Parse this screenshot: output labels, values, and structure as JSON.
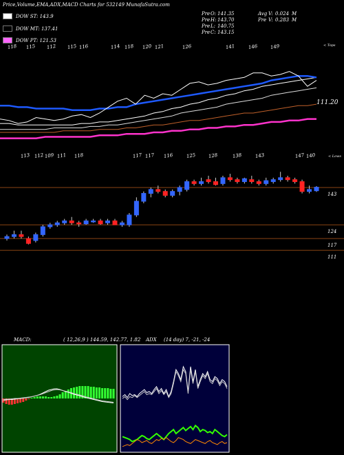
{
  "header": {
    "title": "Price,Volume,EMA,ADX,MACD Charts for 532149 MunafaSutra.com",
    "price_stats": [
      {
        "label": "Pre",
        "key": "O:",
        "value": "141.35"
      },
      {
        "label": "Pre",
        "key": "H:",
        "value": "143.70"
      },
      {
        "label": "Pre",
        "key": "L:",
        "value": "140.75"
      },
      {
        "label": "Pre",
        "key": "C:",
        "value": "143.15"
      }
    ],
    "vol_stats": [
      {
        "label": "Avg",
        "key": "V:",
        "value": "0.024",
        "unit": "M"
      },
      {
        "label": "Pre",
        "key": "V:",
        "value": "0.283",
        "unit": "M"
      }
    ]
  },
  "legend": [
    {
      "label": "DOW ST:",
      "value": "143.9",
      "color": "#ffffff"
    },
    {
      "label": "DOW MT:",
      "value": "137.41",
      "color": "#000000"
    },
    {
      "label": "DOW PT:",
      "value": "121.53",
      "color": "#ff66ff"
    }
  ],
  "colors": {
    "up": "#3366ff",
    "down": "#ff2222",
    "ema_blue": "#1e5aff",
    "ema_magenta": "#ff33cc",
    "grid": "#8b4513",
    "macd_green": "#33ff33",
    "macd_red": "#ff3333",
    "adx_green": "#33ff00",
    "adx_orange": "#ff8800"
  },
  "top_panel": {
    "tops_label": "< Tops",
    "top_labels": [
      "118",
      "115",
      "112",
      "115",
      "116",
      "114",
      "118",
      "120",
      "121",
      "126",
      "141",
      "146",
      "149"
    ],
    "price_label": "111.20",
    "ema_blue": [
      126,
      126,
      125,
      125,
      124,
      124,
      124,
      124,
      123,
      123,
      123,
      124,
      124,
      125,
      125,
      127,
      128,
      129,
      130,
      131,
      132,
      133,
      134,
      135,
      136,
      137,
      138,
      139,
      140,
      141,
      143,
      144,
      145,
      146,
      146,
      145
    ],
    "ema_white1": [
      114,
      114,
      113,
      113,
      113,
      113,
      113,
      113,
      113,
      114,
      114,
      115,
      115,
      116,
      117,
      118,
      119,
      121,
      122,
      124,
      125,
      127,
      128,
      130,
      131,
      133,
      134,
      136,
      137,
      139,
      140,
      141,
      142,
      143,
      144,
      145
    ],
    "ema_white2": [
      110,
      110,
      110,
      110,
      110,
      110,
      111,
      111,
      111,
      111,
      112,
      112,
      113,
      113,
      114,
      115,
      116,
      117,
      118,
      119,
      121,
      122,
      123,
      124,
      125,
      127,
      128,
      129,
      130,
      131,
      133,
      134,
      135,
      136,
      137,
      138
    ],
    "ema_orange": [
      108,
      108,
      108,
      108,
      108,
      108,
      108,
      109,
      109,
      109,
      109,
      110,
      110,
      110,
      111,
      111,
      112,
      113,
      113,
      114,
      115,
      116,
      116,
      117,
      118,
      119,
      120,
      121,
      121,
      122,
      123,
      124,
      125,
      126,
      126,
      127
    ],
    "ema_magenta": [
      104,
      104,
      104,
      104,
      104,
      105,
      105,
      105,
      105,
      105,
      105,
      106,
      106,
      106,
      107,
      107,
      107,
      108,
      108,
      109,
      109,
      110,
      110,
      111,
      111,
      112,
      112,
      113,
      113,
      114,
      115,
      115,
      116,
      116,
      117,
      117
    ],
    "price_line": [
      117,
      116,
      114,
      115,
      118,
      117,
      116,
      117,
      119,
      120,
      118,
      121,
      125,
      129,
      131,
      127,
      133,
      131,
      134,
      133,
      137,
      141,
      142,
      140,
      141,
      143,
      144,
      145,
      148,
      148,
      146,
      147,
      149,
      146,
      139,
      143
    ]
  },
  "main_panel": {
    "lows_label": "< Lows",
    "low_labels": [
      "113",
      "112",
      "109",
      "111",
      "118",
      "117",
      "117",
      "116",
      "125",
      "128",
      "138",
      "143",
      "147",
      "140"
    ],
    "level_lines": [
      {
        "value": 143,
        "label": "143"
      },
      {
        "value": 124,
        "label": "124"
      },
      {
        "value": 117,
        "label": "117"
      },
      {
        "value": 111,
        "label": "111"
      }
    ],
    "ylim": [
      105,
      160
    ],
    "candles": [
      {
        "o": 117,
        "h": 119,
        "l": 116,
        "c": 118
      },
      {
        "o": 118,
        "h": 121,
        "l": 117,
        "c": 119
      },
      {
        "o": 119,
        "h": 121,
        "l": 117,
        "c": 118
      },
      {
        "o": 117,
        "h": 118,
        "l": 114,
        "c": 114.5
      },
      {
        "o": 116,
        "h": 120,
        "l": 115,
        "c": 119
      },
      {
        "o": 119,
        "h": 124,
        "l": 118,
        "c": 123
      },
      {
        "o": 123,
        "h": 125,
        "l": 122,
        "c": 124
      },
      {
        "o": 124,
        "h": 126,
        "l": 123,
        "c": 125
      },
      {
        "o": 125,
        "h": 127,
        "l": 124,
        "c": 126
      },
      {
        "o": 126,
        "h": 128,
        "l": 124,
        "c": 125
      },
      {
        "o": 125,
        "h": 126,
        "l": 123,
        "c": 124.5
      },
      {
        "o": 124.5,
        "h": 127,
        "l": 124,
        "c": 126
      },
      {
        "o": 126,
        "h": 127,
        "l": 125,
        "c": 126
      },
      {
        "o": 126,
        "h": 127,
        "l": 124,
        "c": 124.5
      },
      {
        "o": 125,
        "h": 127,
        "l": 124,
        "c": 126
      },
      {
        "o": 126,
        "h": 127,
        "l": 124,
        "c": 124
      },
      {
        "o": 124,
        "h": 126,
        "l": 123,
        "c": 125
      },
      {
        "o": 124,
        "h": 130,
        "l": 123,
        "c": 129
      },
      {
        "o": 129,
        "h": 138,
        "l": 128,
        "c": 136
      },
      {
        "o": 136,
        "h": 141,
        "l": 135,
        "c": 140
      },
      {
        "o": 140,
        "h": 143,
        "l": 138,
        "c": 142
      },
      {
        "o": 142,
        "h": 144,
        "l": 140,
        "c": 141
      },
      {
        "o": 141,
        "h": 142,
        "l": 138,
        "c": 139
      },
      {
        "o": 139,
        "h": 142,
        "l": 138,
        "c": 141
      },
      {
        "o": 141,
        "h": 144,
        "l": 139,
        "c": 143
      },
      {
        "o": 142,
        "h": 147,
        "l": 141,
        "c": 146
      },
      {
        "o": 146,
        "h": 147,
        "l": 144,
        "c": 145
      },
      {
        "o": 145,
        "h": 148,
        "l": 144,
        "c": 146
      },
      {
        "o": 147,
        "h": 149,
        "l": 145,
        "c": 146
      },
      {
        "o": 146,
        "h": 148,
        "l": 144,
        "c": 144.5
      },
      {
        "o": 145,
        "h": 149,
        "l": 144,
        "c": 148
      },
      {
        "o": 148,
        "h": 150,
        "l": 146,
        "c": 147
      },
      {
        "o": 147,
        "h": 148,
        "l": 145,
        "c": 146
      },
      {
        "o": 146,
        "h": 148,
        "l": 145,
        "c": 147.5
      },
      {
        "o": 147,
        "h": 149,
        "l": 145,
        "c": 146
      },
      {
        "o": 146,
        "h": 147,
        "l": 144,
        "c": 145
      },
      {
        "o": 145,
        "h": 148,
        "l": 144,
        "c": 146.5
      },
      {
        "o": 146,
        "h": 148,
        "l": 145,
        "c": 147
      },
      {
        "o": 147,
        "h": 151,
        "l": 146,
        "c": 148
      },
      {
        "o": 148,
        "h": 149,
        "l": 146,
        "c": 147
      },
      {
        "o": 147,
        "h": 148,
        "l": 145,
        "c": 146
      },
      {
        "o": 146,
        "h": 147,
        "l": 140,
        "c": 141
      },
      {
        "o": 141,
        "h": 144,
        "l": 140,
        "c": 142
      },
      {
        "o": 141.35,
        "h": 143.7,
        "l": 140.75,
        "c": 143.15
      }
    ]
  },
  "macd": {
    "title": "MACD:",
    "values": "( 12,26,9 ) 144.59, 142.77, 1.82",
    "histogram": [
      -0.6,
      -0.8,
      -0.9,
      -0.9,
      -0.8,
      -0.7,
      -0.6,
      -0.5,
      -0.3,
      -0.1,
      0.1,
      0.2,
      0.3,
      0.3,
      0.3,
      0.3,
      0.2,
      0.2,
      0.3,
      0.4,
      0.6,
      0.9,
      1.1,
      1.3,
      1.5,
      1.6,
      1.7,
      1.8,
      1.8,
      1.8,
      1.8,
      1.7,
      1.7,
      1.6,
      1.6,
      1.5,
      1.5,
      1.5,
      1.4,
      1.4
    ],
    "line1": [
      -0.5,
      -0.4,
      -0.3,
      -0.3,
      -0.2,
      -0.1,
      0,
      0.1,
      0.2,
      0.3,
      0.5,
      0.7,
      0.9,
      1.2,
      1.6,
      2.0,
      2.4,
      2.6,
      2.8,
      2.8,
      2.6,
      2.3,
      2.0,
      1.8,
      1.5,
      1.2,
      1.0,
      0.8,
      0.5,
      0.3,
      0.1,
      -0.1,
      -0.3,
      -0.5,
      -0.7,
      -0.9,
      -1.0,
      -1.1,
      -1.2,
      -1.3
    ],
    "line2": [
      -0.3,
      -0.2,
      -0.2,
      -0.1,
      0,
      0,
      0.1,
      0.2,
      0.3,
      0.4,
      0.5,
      0.7,
      0.9,
      1.1,
      1.4,
      1.7,
      2.0,
      2.3,
      2.5,
      2.6,
      2.5,
      2.3,
      2.1,
      1.9,
      1.7,
      1.4,
      1.2,
      1.0,
      0.8,
      0.5,
      0.3,
      0.1,
      -0.1,
      -0.3,
      -0.5,
      -0.7,
      -0.8,
      -0.9,
      -1.0,
      -1.1
    ]
  },
  "adx": {
    "title": "ADX",
    "values": "(14 day) 7, -21, -24",
    "white1": [
      55,
      57,
      54,
      58,
      56,
      57,
      55,
      58,
      60,
      62,
      59,
      60,
      58,
      62,
      65,
      60,
      63,
      58,
      62,
      55,
      60,
      70,
      82,
      78,
      72,
      85,
      80,
      60,
      85,
      70,
      82,
      65,
      72,
      78,
      75,
      80,
      72,
      70,
      75,
      73,
      68,
      72,
      70,
      65
    ],
    "white2": [
      53,
      55,
      52,
      55,
      54,
      56,
      54,
      56,
      58,
      60,
      57,
      58,
      57,
      60,
      63,
      58,
      61,
      57,
      60,
      54,
      58,
      68,
      80,
      76,
      70,
      82,
      78,
      58,
      82,
      68,
      80,
      63,
      70,
      76,
      73,
      78,
      70,
      68,
      73,
      71,
      66,
      70,
      68,
      63
    ],
    "green": [
      15,
      14,
      13,
      12,
      10,
      11,
      12,
      14,
      16,
      15,
      13,
      12,
      14,
      16,
      18,
      16,
      14,
      12,
      15,
      18,
      20,
      22,
      18,
      20,
      22,
      24,
      21,
      23,
      25,
      22,
      26,
      24,
      20,
      22,
      21,
      19,
      20,
      18,
      22,
      20,
      18,
      16,
      15,
      17
    ],
    "orange": [
      5,
      6,
      7,
      6,
      8,
      10,
      12,
      11,
      9,
      10,
      11,
      9,
      8,
      10,
      12,
      11,
      13,
      12,
      14,
      12,
      10,
      9,
      11,
      14,
      13,
      12,
      10,
      9,
      8,
      10,
      12,
      11,
      10,
      9,
      8,
      10,
      11,
      9,
      8,
      7,
      9,
      10,
      8,
      9
    ]
  }
}
